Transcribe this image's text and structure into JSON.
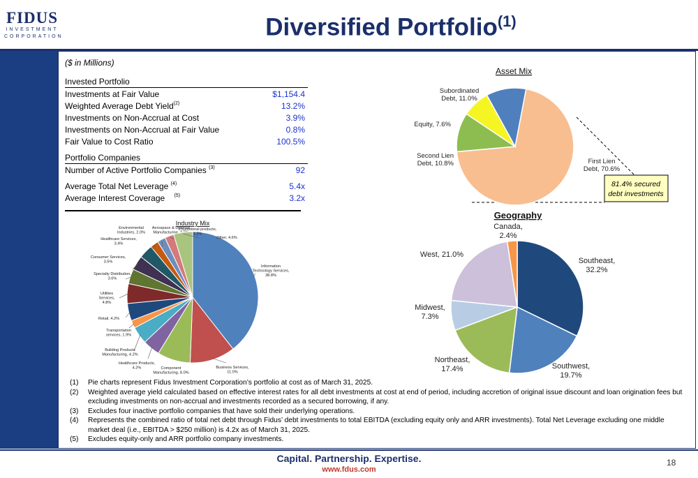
{
  "header": {
    "logo_main": "FIDUS",
    "logo_line1": "INVESTMENT",
    "logo_line2": "CORPORATION",
    "title": "Diversified Portfolio",
    "title_sup": "(1)"
  },
  "units_note": "($ in Millions)",
  "invested_portfolio": {
    "heading": "Invested Portfolio",
    "rows": [
      {
        "label": "Investments at Fair Value",
        "sup": "",
        "value": "$1,154.4"
      },
      {
        "label": "Weighted Average Debt Yield",
        "sup": "(2)",
        "value": "13.2%"
      },
      {
        "label": "Investments on Non-Accrual at Cost",
        "sup": "",
        "value": "3.9%"
      },
      {
        "label": "Investments on Non-Accrual at Fair Value",
        "sup": "",
        "value": "0.8%"
      },
      {
        "label": "Fair Value to Cost Ratio",
        "sup": "",
        "value": "100.5%"
      }
    ]
  },
  "portfolio_companies": {
    "heading": "Portfolio Companies",
    "rows": [
      {
        "label": "Number of Active Portfolio Companies",
        "sup": "(3)",
        "value": "92"
      },
      {
        "label": "Average Total Net Leverage",
        "sup": "(4)",
        "value": "5.4x"
      },
      {
        "label": "Average Interest Coverage",
        "sup": "(5)",
        "value": "3.2x"
      }
    ]
  },
  "callout": {
    "line1": "81.4% secured",
    "line2": "debt investments"
  },
  "chart_data": [
    {
      "type": "pie",
      "title": "Asset Mix",
      "slices": [
        {
          "label": "First Lien Debt",
          "value": 70.6,
          "text": [
            "First Lien",
            "Debt, 70.6%"
          ],
          "color": "#f8be90"
        },
        {
          "label": "Second Lien Debt",
          "value": 10.8,
          "text": [
            "Second Lien",
            "Debt, 10.8%"
          ],
          "color": "#8dbd50"
        },
        {
          "label": "Equity",
          "value": 7.6,
          "text": [
            "Equity, 7.6%"
          ],
          "color": "#f5f524"
        },
        {
          "label": "Subordinated Debt",
          "value": 11.0,
          "text": [
            "Subordinated",
            "Debt, 11.0%"
          ],
          "color": "#4f7fbd"
        }
      ]
    },
    {
      "type": "pie",
      "title": "Geography",
      "slices": [
        {
          "label": "Southeast",
          "value": 32.2,
          "text": [
            "Southeast,",
            "32.2%"
          ],
          "color": "#1f497d"
        },
        {
          "label": "Southwest",
          "value": 19.7,
          "text": [
            "Southwest,",
            "19.7%"
          ],
          "color": "#4f81bd"
        },
        {
          "label": "Northeast",
          "value": 17.4,
          "text": [
            "Northeast,",
            "17.4%"
          ],
          "color": "#9bbb59"
        },
        {
          "label": "Midwest",
          "value": 7.3,
          "text": [
            "Midwest,",
            "7.3%"
          ],
          "color": "#b8cce4"
        },
        {
          "label": "West",
          "value": 21.0,
          "text": [
            "West, 21.0%"
          ],
          "color": "#ccc0da"
        },
        {
          "label": "Canada",
          "value": 2.4,
          "text": [
            "Canada,",
            "2.4%"
          ],
          "color": "#f79646"
        }
      ]
    },
    {
      "type": "pie",
      "title": "Industry Mix",
      "slices": [
        {
          "label": "Information Technology Services",
          "value": 38.8,
          "text": [
            "Information",
            "Technology Services,",
            "38.8%"
          ],
          "color": "#4f81bd"
        },
        {
          "label": "Business Services",
          "value": 11.0,
          "text": [
            "Business Services,",
            "11.0%"
          ],
          "color": "#c0504d"
        },
        {
          "label": "Component Manufacturing",
          "value": 8.0,
          "text": [
            "Component",
            "Manufacturing, 8.0%"
          ],
          "color": "#9bbb59"
        },
        {
          "label": "Healthcare Products",
          "value": 4.2,
          "text": [
            "Healthcare Products,",
            "4.2%"
          ],
          "color": "#8064a2"
        },
        {
          "label": "Building Products Manufacturing",
          "value": 4.2,
          "text": [
            "Building Products",
            "Manufacturing, 4.2%"
          ],
          "color": "#4bacc6"
        },
        {
          "label": "Transportation services",
          "value": 1.9,
          "text": [
            "Transportation",
            "services, 1.9%"
          ],
          "color": "#f79646"
        },
        {
          "label": "Retail",
          "value": 4.2,
          "text": [
            "Retail, 4.2%"
          ],
          "color": "#1f497d"
        },
        {
          "label": "Utilities Services",
          "value": 4.8,
          "text": [
            "Utilities",
            "Services,",
            "4.8%"
          ],
          "color": "#7f2a2a"
        },
        {
          "label": "Specialty Distribution",
          "value": 3.6,
          "text": [
            "Specialty Distribution,",
            "3.6%"
          ],
          "color": "#5f7530"
        },
        {
          "label": "Consumer Services",
          "value": 3.5,
          "text": [
            "Consumer Services,",
            "3.5%"
          ],
          "color": "#3f3151"
        },
        {
          "label": "Healthcare Services",
          "value": 3.4,
          "text": [
            "Healthcare Services,",
            "3.4%"
          ],
          "color": "#215867"
        },
        {
          "label": "Environmental Industries",
          "value": 2.0,
          "text": [
            "Environmental",
            "Industries, 2.0%"
          ],
          "color": "#c55a11"
        },
        {
          "label": "Aerospace & Defense Manufacturing",
          "value": 2.0,
          "text": [
            "Aerospace & Defense",
            "Manufacturing, 2.0%"
          ],
          "color": "#6c8ebf"
        },
        {
          "label": "Promotional products",
          "value": 2.2,
          "text": [
            "Promotional products,",
            "2.2%"
          ],
          "color": "#d47a7a"
        },
        {
          "label": "Other",
          "value": 4.6,
          "text": [
            "Other, 4.6%"
          ],
          "color": "#a9c47f"
        }
      ]
    }
  ],
  "footnotes": [
    {
      "num": "(1)",
      "text": "Pie charts represent Fidus Investment Corporation’s portfolio at cost as of March 31, 2025."
    },
    {
      "num": "(2)",
      "text": "Weighted average yield calculated based on effective interest rates for all debt investments at cost at end of period, including accretion of original issue discount and loan origination fees but excluding investments on non-accrual and investments recorded as a secured borrowing, if any."
    },
    {
      "num": "(3)",
      "text": "Excludes four inactive portfolio companies that have sold their underlying operations."
    },
    {
      "num": "(4)",
      "text": "Represents the combined ratio of total net debt through Fidus’ debt investments to total EBITDA (excluding equity only and ARR investments). Total Net Leverage excluding one middle market deal (i.e., EBITDA > $250 million) is 4.2x as of March 31, 2025."
    },
    {
      "num": "(5)",
      "text": "Excludes equity-only and ARR portfolio company investments."
    }
  ],
  "footer": {
    "tagline": "Capital. Partnership. Expertise.",
    "website": "www.fdus.com",
    "page_number": "18"
  }
}
